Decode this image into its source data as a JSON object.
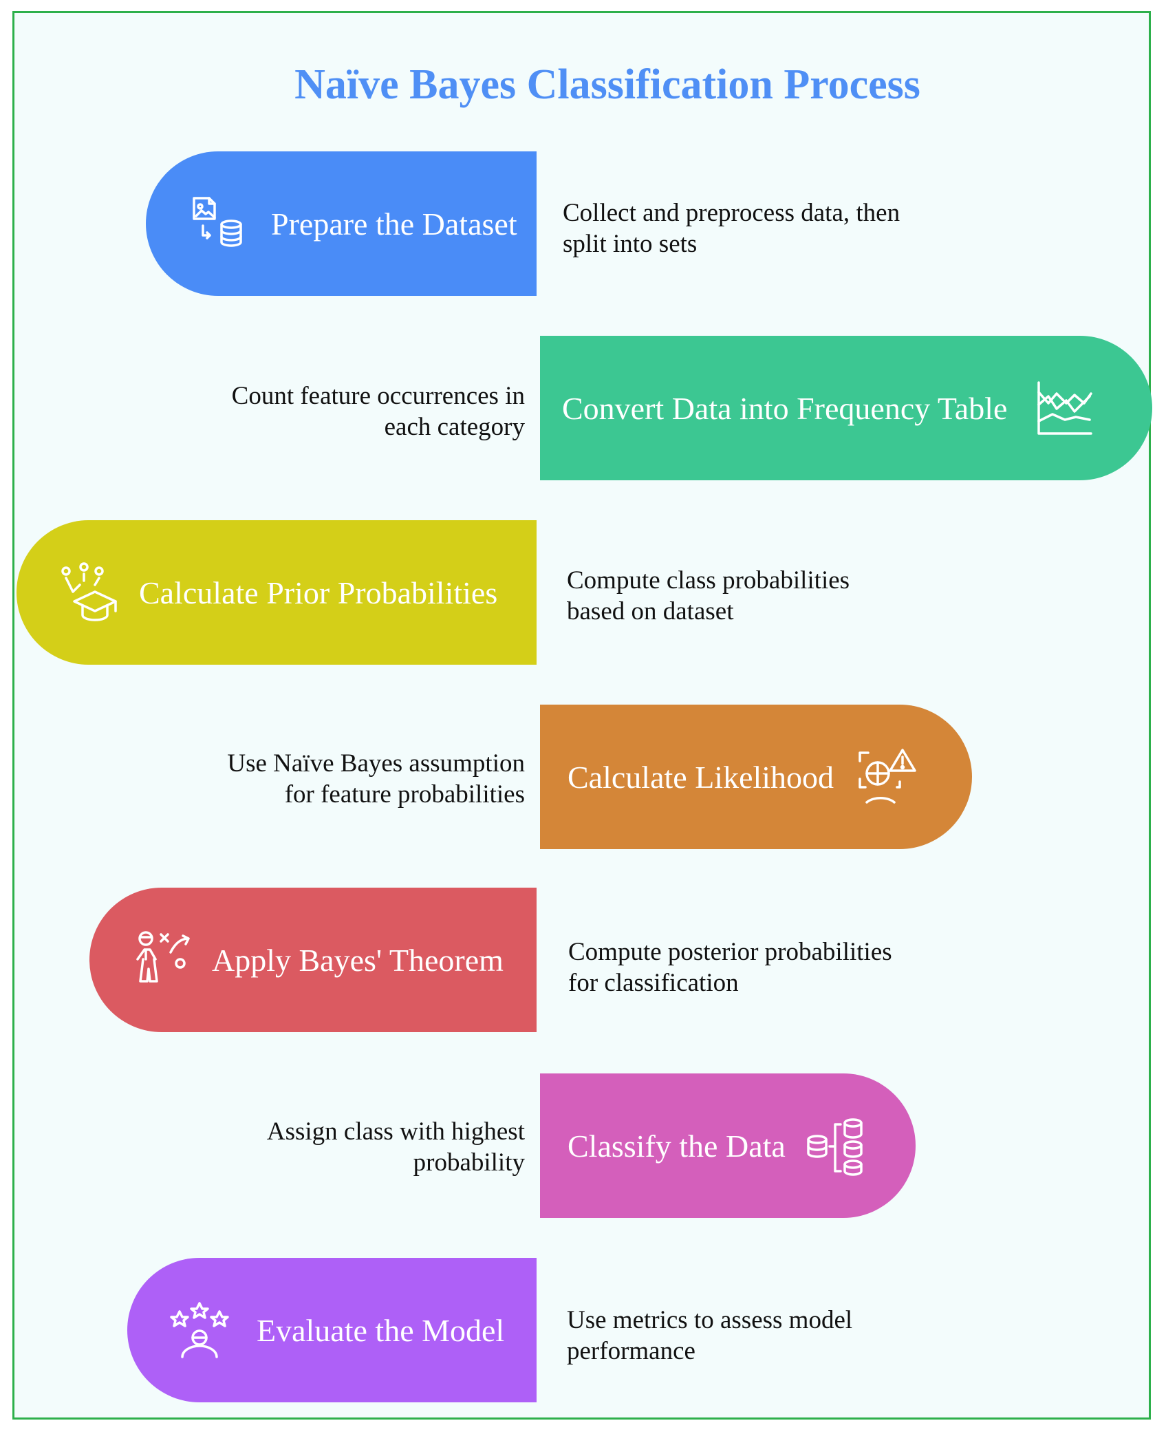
{
  "title": "Naïve Bayes Classification Process",
  "steps": [
    {
      "label": "Prepare the Dataset",
      "icon": "image-database-icon",
      "color": "#4a8cf7",
      "desc": [
        "Collect and preprocess data, then",
        "split into sets"
      ]
    },
    {
      "label": "Convert Data into Frequency Table",
      "icon": "line-chart-icon",
      "color": "#3cc792",
      "desc": [
        "Count feature occurrences in",
        "each category"
      ]
    },
    {
      "label": "Calculate Prior Probabilities",
      "icon": "graduation-cap-icon",
      "color": "#d4cf18",
      "desc": [
        "Compute class probabilities",
        "based on dataset"
      ]
    },
    {
      "label": "Calculate Likelihood",
      "icon": "analysis-warning-icon",
      "color": "#d48638",
      "desc": [
        "Use Naïve Bayes assumption",
        "for feature probabilities"
      ]
    },
    {
      "label": "Apply Bayes' Theorem",
      "icon": "strategy-person-icon",
      "color": "#db5a61",
      "desc": [
        "Compute posterior probabilities",
        "for classification"
      ]
    },
    {
      "label": "Classify the Data",
      "icon": "database-split-icon",
      "color": "#d45fbb",
      "desc": [
        "Assign class with highest",
        "probability"
      ]
    },
    {
      "label": "Evaluate the Model",
      "icon": "star-rating-icon",
      "color": "#ae60f7",
      "desc": [
        "Use metrics to assess model",
        "performance"
      ]
    }
  ]
}
